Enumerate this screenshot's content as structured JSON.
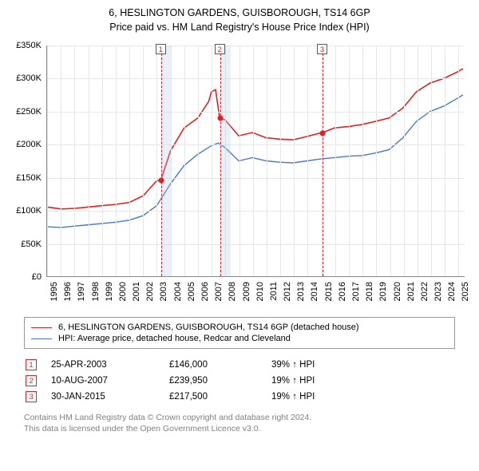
{
  "title": {
    "line1": "6, HESLINGTON GARDENS, GUISBOROUGH, TS14 6GP",
    "line2": "Price paid vs. HM Land Registry's House Price Index (HPI)"
  },
  "chart": {
    "type": "line",
    "background_color": "#ffffff",
    "grid_color": "#e6e6e6",
    "axis_color": "#888888",
    "ylim": [
      0,
      350000
    ],
    "ytick_step": 50000,
    "yticks": [
      "£0",
      "£50K",
      "£100K",
      "£150K",
      "£200K",
      "£250K",
      "£300K",
      "£350K"
    ],
    "xlim": [
      1995,
      2025.5
    ],
    "xticks": [
      1995,
      1996,
      1997,
      1998,
      1999,
      2000,
      2001,
      2002,
      2003,
      2004,
      2005,
      2006,
      2007,
      2008,
      2009,
      2010,
      2011,
      2012,
      2013,
      2014,
      2015,
      2016,
      2017,
      2018,
      2019,
      2020,
      2021,
      2022,
      2023,
      2024,
      2025
    ],
    "series": [
      {
        "id": "property",
        "label": "6, HESLINGTON GARDENS, GUISBOROUGH, TS14 6GP (detached house)",
        "color": "#e02020",
        "line_width": 1.6,
        "data": [
          [
            1995,
            105000
          ],
          [
            1996,
            102000
          ],
          [
            1997,
            103000
          ],
          [
            1998,
            105000
          ],
          [
            1999,
            107000
          ],
          [
            2000,
            109000
          ],
          [
            2001,
            112000
          ],
          [
            2002,
            122000
          ],
          [
            2003,
            145000
          ],
          [
            2003.31,
            146000
          ],
          [
            2004,
            190000
          ],
          [
            2005,
            225000
          ],
          [
            2006,
            240000
          ],
          [
            2006.8,
            265000
          ],
          [
            2007,
            280000
          ],
          [
            2007.3,
            283000
          ],
          [
            2007.6,
            240000
          ],
          [
            2008,
            237000
          ],
          [
            2009,
            213000
          ],
          [
            2010,
            218000
          ],
          [
            2011,
            210000
          ],
          [
            2012,
            208000
          ],
          [
            2013,
            207000
          ],
          [
            2014,
            212000
          ],
          [
            2015,
            217500
          ],
          [
            2015.08,
            217500
          ],
          [
            2016,
            225000
          ],
          [
            2017,
            227000
          ],
          [
            2018,
            230000
          ],
          [
            2019,
            235000
          ],
          [
            2020,
            240000
          ],
          [
            2021,
            255000
          ],
          [
            2022,
            280000
          ],
          [
            2023,
            293000
          ],
          [
            2024,
            300000
          ],
          [
            2025,
            310000
          ],
          [
            2025.4,
            315000
          ]
        ]
      },
      {
        "id": "hpi",
        "label": "HPI: Average price, detached house, Redcar and Cleveland",
        "color": "#4a78c8",
        "line_width": 1.4,
        "data": [
          [
            1995,
            75000
          ],
          [
            1996,
            74000
          ],
          [
            1997,
            76000
          ],
          [
            1998,
            78000
          ],
          [
            1999,
            80000
          ],
          [
            2000,
            82000
          ],
          [
            2001,
            85000
          ],
          [
            2002,
            92000
          ],
          [
            2003,
            107000
          ],
          [
            2004,
            140000
          ],
          [
            2005,
            168000
          ],
          [
            2006,
            185000
          ],
          [
            2007,
            198000
          ],
          [
            2007.5,
            202000
          ],
          [
            2008,
            195000
          ],
          [
            2009,
            175000
          ],
          [
            2010,
            180000
          ],
          [
            2011,
            175000
          ],
          [
            2012,
            173000
          ],
          [
            2013,
            172000
          ],
          [
            2014,
            175000
          ],
          [
            2015,
            178000
          ],
          [
            2016,
            180000
          ],
          [
            2017,
            182000
          ],
          [
            2018,
            183000
          ],
          [
            2019,
            187000
          ],
          [
            2020,
            192000
          ],
          [
            2021,
            210000
          ],
          [
            2022,
            235000
          ],
          [
            2023,
            250000
          ],
          [
            2024,
            258000
          ],
          [
            2025,
            270000
          ],
          [
            2025.4,
            275000
          ]
        ]
      }
    ],
    "markers": [
      {
        "n": "1",
        "x": 2003.31,
        "y": 146000,
        "color": "#e02020",
        "vline_color": "#e02020"
      },
      {
        "n": "2",
        "x": 2007.61,
        "y": 239950,
        "color": "#e02020",
        "vline_color": "#e02020"
      },
      {
        "n": "3",
        "x": 2015.08,
        "y": 217500,
        "color": "#e02020",
        "vline_color": "#e02020"
      }
    ],
    "shaded_ranges": [
      {
        "x0": 2003.31,
        "x1": 2004.0,
        "color": "rgba(180,200,230,0.28)"
      },
      {
        "x0": 2007.6,
        "x1": 2008.4,
        "color": "rgba(180,200,230,0.28)"
      }
    ],
    "marker_point_color": "#e02020",
    "marker_box_border": "#e02020",
    "marker_box_text": "#e02020",
    "title_fontsize": 12.5,
    "axis_fontsize": 11
  },
  "legend": {
    "items": [
      {
        "color": "#e02020",
        "label": "6, HESLINGTON GARDENS, GUISBOROUGH, TS14 6GP (detached house)"
      },
      {
        "color": "#4a78c8",
        "label": "HPI: Average price, detached house, Redcar and Cleveland"
      }
    ]
  },
  "events": [
    {
      "n": "1",
      "date": "25-APR-2003",
      "price": "£146,000",
      "delta": "39% ↑ HPI",
      "color": "#e02020"
    },
    {
      "n": "2",
      "date": "10-AUG-2007",
      "price": "£239,950",
      "delta": "19% ↑ HPI",
      "color": "#e02020"
    },
    {
      "n": "3",
      "date": "30-JAN-2015",
      "price": "£217,500",
      "delta": "19% ↑ HPI",
      "color": "#e02020"
    }
  ],
  "footnote": {
    "line1": "Contains HM Land Registry data © Crown copyright and database right 2024.",
    "line2": "This data is licensed under the Open Government Licence v3.0."
  }
}
